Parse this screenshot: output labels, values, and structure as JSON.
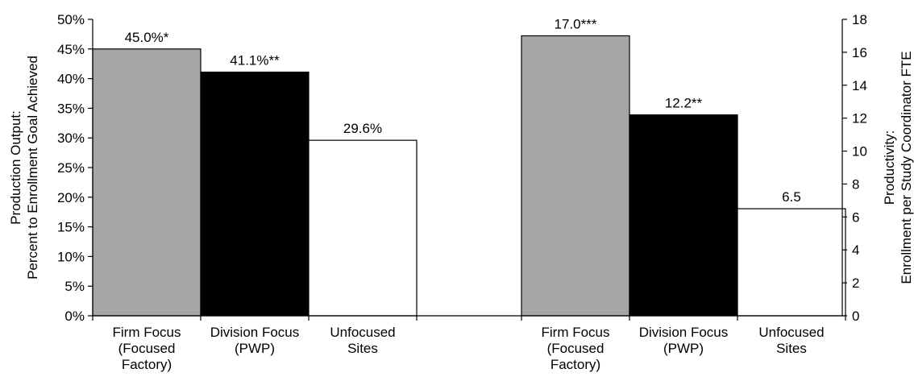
{
  "chart_data": {
    "type": "bar",
    "left_axis": {
      "title_lines": [
        "Production Output:",
        "Percent to Enrollment Goal Achieved"
      ],
      "ylim": [
        0,
        50
      ],
      "ticks": [
        0,
        5,
        10,
        15,
        20,
        25,
        30,
        35,
        40,
        45,
        50
      ],
      "tick_labels": [
        "0%",
        "5%",
        "10%",
        "15%",
        "20%",
        "25%",
        "30%",
        "35%",
        "40%",
        "45%",
        "50%"
      ]
    },
    "right_axis": {
      "title_lines": [
        "Productivity:",
        "Enrollment per Study Coordinator FTE"
      ],
      "ylim": [
        0,
        18
      ],
      "ticks": [
        0,
        2,
        4,
        6,
        8,
        10,
        12,
        14,
        16,
        18
      ],
      "tick_labels": [
        "0",
        "2",
        "4",
        "6",
        "8",
        "10",
        "12",
        "14",
        "16",
        "18"
      ]
    },
    "categories": [
      [
        "Firm Focus",
        "(Focused",
        "Factory)"
      ],
      [
        "Division Focus",
        "(PWP)"
      ],
      [
        "Unfocused",
        "Sites"
      ]
    ],
    "colors": [
      "#a6a6a6",
      "#000000",
      "#ffffff"
    ],
    "groups": [
      {
        "axis": "left",
        "values": [
          45.0,
          41.1,
          29.6
        ],
        "labels": [
          "45.0%*",
          "41.1%**",
          "29.6%"
        ]
      },
      {
        "axis": "right",
        "values": [
          17.0,
          12.2,
          6.5
        ],
        "labels": [
          "17.0***",
          "12.2**",
          "6.5"
        ]
      }
    ],
    "grid": false,
    "legend": "none"
  }
}
